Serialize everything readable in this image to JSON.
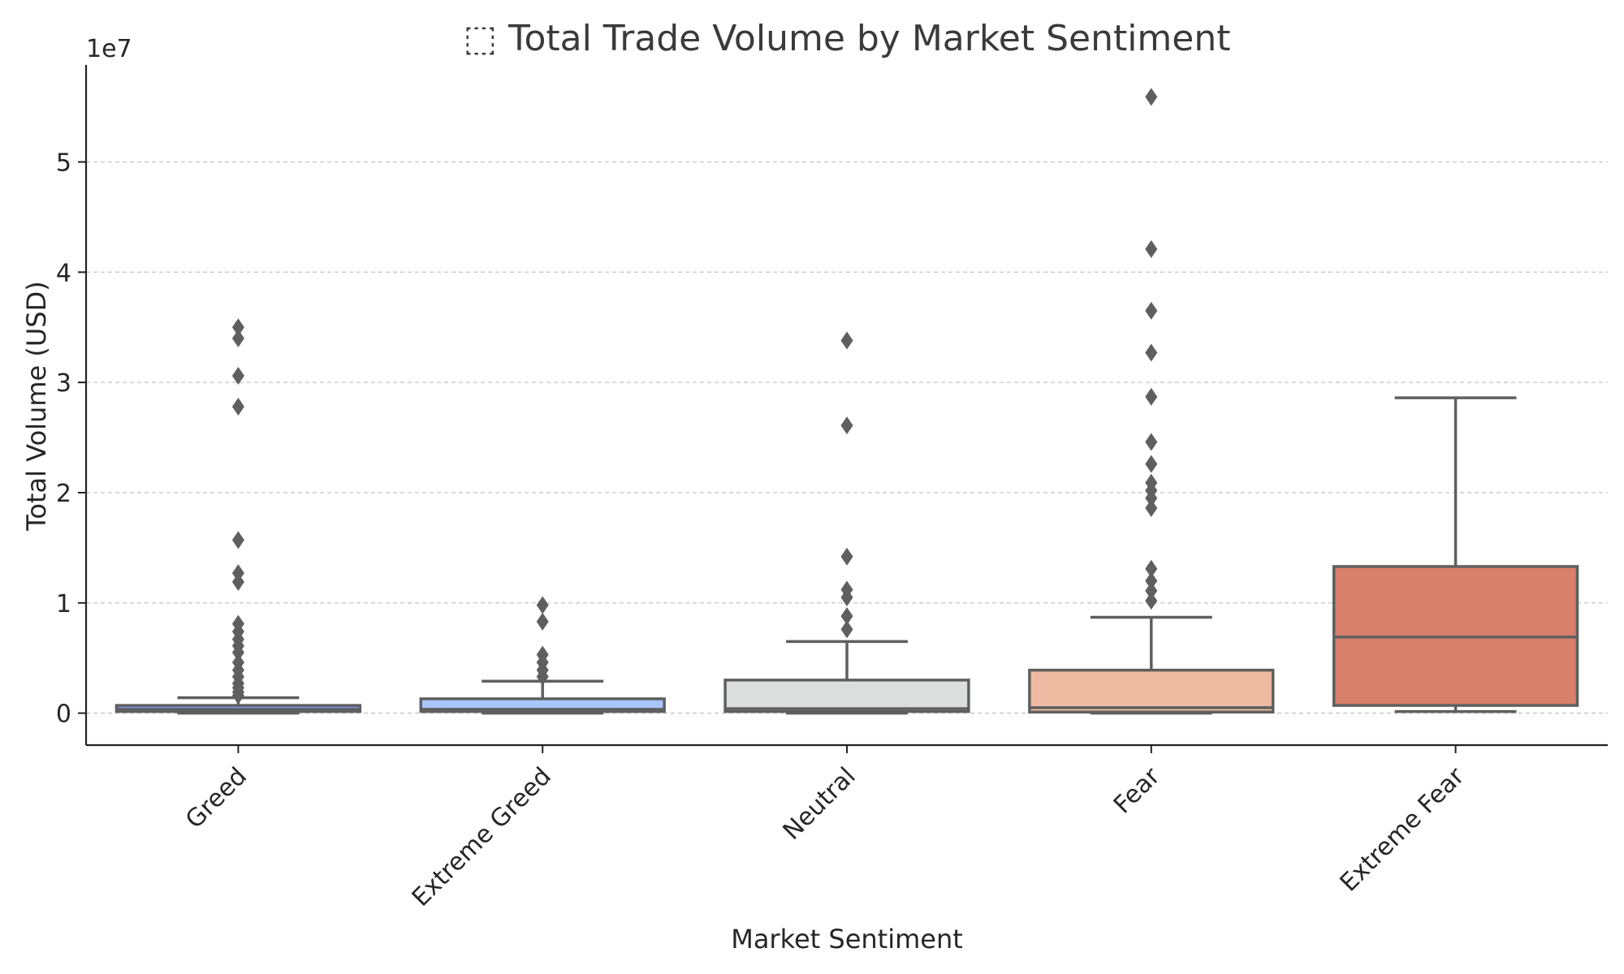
{
  "chart_data": {
    "type": "box",
    "title": "⬚ Total Trade Volume by Market Sentiment",
    "xlabel": "Market Sentiment",
    "ylabel": "Total Volume (USD)",
    "y_offset_label": "1e7",
    "y_scale_factor": 10000000,
    "ylim": [
      -2900000,
      58800000
    ],
    "yticks": [
      0,
      10000000,
      20000000,
      30000000,
      40000000,
      50000000
    ],
    "ytick_labels": [
      "0",
      "1",
      "2",
      "3",
      "4",
      "5"
    ],
    "grid": "y-dashed",
    "legend": "none",
    "categories": [
      "Greed",
      "Extreme Greed",
      "Neutral",
      "Fear",
      "Extreme Fear"
    ],
    "boxes": [
      {
        "name": "Greed",
        "color": "#7b9ff9",
        "whisker_low": 0,
        "q1": 150000,
        "median": 350000,
        "q3": 700000,
        "whisker_high": 1400000,
        "outliers": [
          35000000,
          34000000,
          30600000,
          27800000,
          15700000,
          12700000,
          11900000,
          8100000,
          7400000,
          6700000,
          6100000,
          5500000,
          4600000,
          3900000,
          3300000,
          2700000,
          2300000,
          1900000,
          1600000
        ]
      },
      {
        "name": "Extreme Greed",
        "color": "#aac7fd",
        "whisker_low": 0,
        "q1": 150000,
        "median": 350000,
        "q3": 1300000,
        "whisker_high": 2900000,
        "outliers": [
          9800000,
          8300000,
          5300000,
          4600000,
          3900000,
          3300000
        ]
      },
      {
        "name": "Neutral",
        "color": "#dcdddd",
        "whisker_low": 0,
        "q1": 150000,
        "median": 400000,
        "q3": 3000000,
        "whisker_high": 6500000,
        "outliers": [
          33800000,
          26100000,
          14200000,
          11200000,
          10500000,
          8800000,
          7600000
        ]
      },
      {
        "name": "Fear",
        "color": "#eebba2",
        "whisker_low": 0,
        "q1": 100000,
        "median": 500000,
        "q3": 3900000,
        "whisker_high": 8700000,
        "outliers": [
          55900000,
          42100000,
          36500000,
          32700000,
          28700000,
          24600000,
          22600000,
          20900000,
          20200000,
          19500000,
          18600000,
          13100000,
          12000000,
          11100000,
          10200000
        ]
      },
      {
        "name": "Extreme Fear",
        "color": "#d8806b",
        "whisker_low": 150000,
        "q1": 700000,
        "median": 6900000,
        "q3": 13300000,
        "whisker_high": 28600000,
        "outliers": []
      }
    ]
  }
}
